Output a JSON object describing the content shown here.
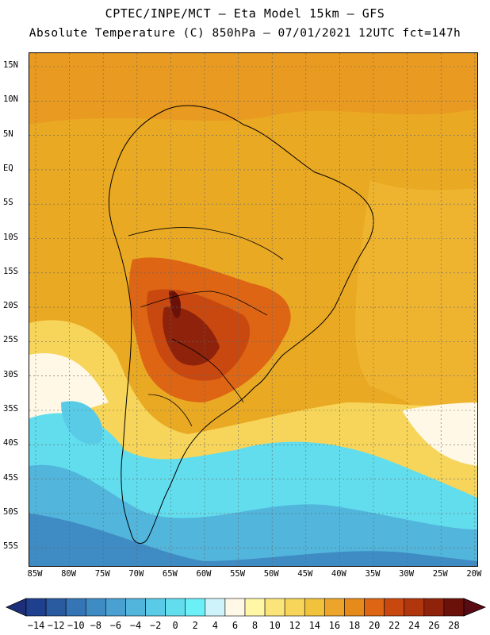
{
  "header": {
    "line1": "CPTEC/INPE/MCT – Eta Model 15km – GFS",
    "line2": "Absolute Temperature (C) 850hPa – 07/01/2021 12UTC fct=147h"
  },
  "map": {
    "variable": "Absolute Temperature (C) 850hPa",
    "lat_labels": [
      "15N",
      "10N",
      "5N",
      "EQ",
      "5S",
      "10S",
      "15S",
      "20S",
      "25S",
      "30S",
      "35S",
      "40S",
      "45S",
      "50S",
      "55S"
    ],
    "lon_labels": [
      "85W",
      "80W",
      "75W",
      "70W",
      "65W",
      "60W",
      "55W",
      "50W",
      "45W",
      "40W",
      "35W",
      "30W",
      "25W",
      "20W"
    ]
  },
  "colorbar": {
    "labels": [
      "-14",
      "-12",
      "-10",
      "-8",
      "-6",
      "-4",
      "-2",
      "0",
      "2",
      "4",
      "6",
      "8",
      "10",
      "12",
      "14",
      "16",
      "18",
      "20",
      "22",
      "24",
      "26",
      "28"
    ],
    "colors": [
      "#1f3f8f",
      "#2a5aa0",
      "#3575b5",
      "#3f8bc4",
      "#4aa0d0",
      "#52b5dc",
      "#5acbe6",
      "#62ddee",
      "#6cf0f8",
      "#cff3fb",
      "#fff8e6",
      "#fff7a6",
      "#fbe57a",
      "#f6d55a",
      "#f1c23c",
      "#eca52a",
      "#e78a1c",
      "#dd6514",
      "#c9480f",
      "#b0360d",
      "#8e220b",
      "#6a120a"
    ]
  }
}
